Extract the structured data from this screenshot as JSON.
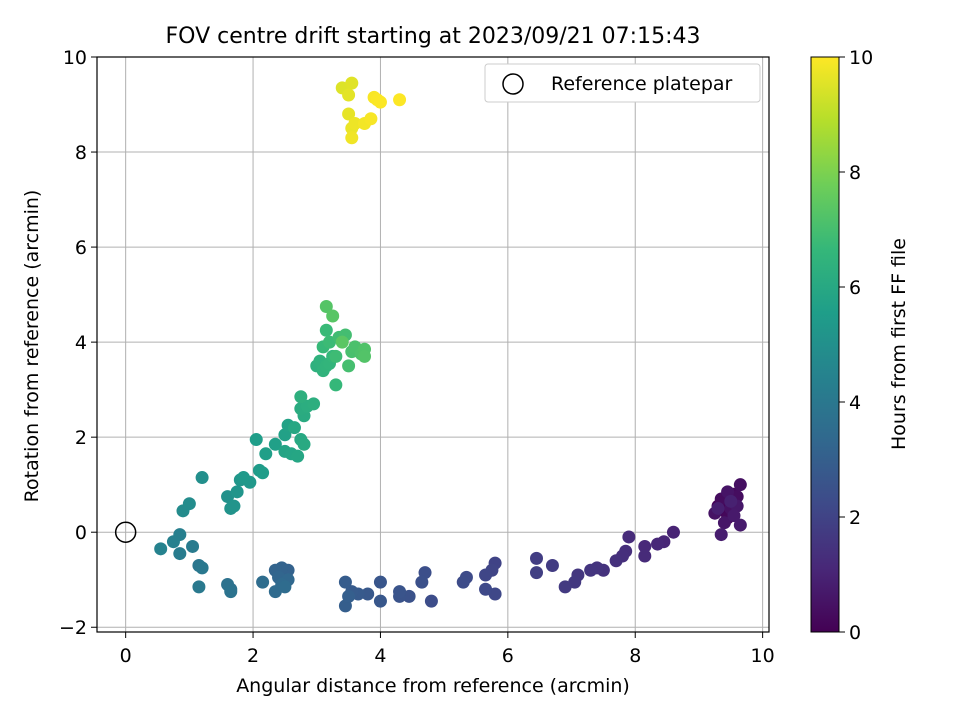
{
  "chart_data": {
    "type": "scatter",
    "title": "FOV centre drift starting at 2023/09/21 07:15:43",
    "xlabel": "Angular distance from reference (arcmin)",
    "ylabel": "Rotation from reference (arcmin)",
    "xlim": [
      -0.45,
      10.1
    ],
    "ylim": [
      -2.1,
      10.0
    ],
    "xticks": [
      "0",
      "2",
      "4",
      "6",
      "8",
      "10"
    ],
    "yticks": [
      "−2",
      "0",
      "2",
      "4",
      "6",
      "8",
      "10"
    ],
    "grid": true,
    "legend": {
      "placement": "top-right",
      "entries": [
        "Reference platepar"
      ]
    },
    "reference_point": {
      "x": 0,
      "y": 0
    },
    "colorbar": {
      "label": "Hours from first FF file",
      "range": [
        0,
        10
      ],
      "ticks": [
        "0",
        "2",
        "4",
        "6",
        "8",
        "10"
      ],
      "colormap": [
        "#440154",
        "#482878",
        "#3e4a89",
        "#31688e",
        "#26828e",
        "#1f9e89",
        "#35b779",
        "#6ece58",
        "#b5de2b",
        "#fde725"
      ]
    },
    "series": [
      {
        "columns": [
          "x",
          "y",
          "hours"
        ],
        "points": [
          [
            9.3,
            0.55,
            0.05
          ],
          [
            9.4,
            0.45,
            0.1
          ],
          [
            9.5,
            0.6,
            0.15
          ],
          [
            9.45,
            0.3,
            0.2
          ],
          [
            9.55,
            0.8,
            0.25
          ],
          [
            9.35,
            0.7,
            0.3
          ],
          [
            9.6,
            0.75,
            0.35
          ],
          [
            9.65,
            1.0,
            0.4
          ],
          [
            9.5,
            0.5,
            0.45
          ],
          [
            9.25,
            0.4,
            0.5
          ],
          [
            9.45,
            0.85,
            0.55
          ],
          [
            9.4,
            0.2,
            0.6
          ],
          [
            9.6,
            0.55,
            0.65
          ],
          [
            9.55,
            0.35,
            0.7
          ],
          [
            9.65,
            0.15,
            0.75
          ],
          [
            9.35,
            -0.05,
            0.8
          ],
          [
            9.3,
            0.5,
            0.85
          ],
          [
            9.5,
            0.65,
            0.9
          ],
          [
            8.6,
            0.0,
            1.0
          ],
          [
            8.45,
            -0.2,
            1.05
          ],
          [
            8.35,
            -0.25,
            1.1
          ],
          [
            8.15,
            -0.3,
            1.15
          ],
          [
            8.15,
            -0.5,
            1.2
          ],
          [
            7.9,
            -0.1,
            1.25
          ],
          [
            7.85,
            -0.4,
            1.3
          ],
          [
            7.8,
            -0.5,
            1.35
          ],
          [
            7.7,
            -0.6,
            1.4
          ],
          [
            7.5,
            -0.8,
            1.45
          ],
          [
            7.4,
            -0.75,
            1.5
          ],
          [
            7.3,
            -0.8,
            1.55
          ],
          [
            7.1,
            -0.9,
            1.6
          ],
          [
            7.05,
            -1.05,
            1.65
          ],
          [
            6.9,
            -1.15,
            1.7
          ],
          [
            6.7,
            -0.7,
            1.75
          ],
          [
            6.45,
            -0.55,
            1.8
          ],
          [
            6.45,
            -0.85,
            1.85
          ],
          [
            5.8,
            -0.65,
            2.0
          ],
          [
            5.75,
            -0.8,
            2.05
          ],
          [
            5.65,
            -0.9,
            2.1
          ],
          [
            5.8,
            -1.3,
            2.15
          ],
          [
            5.65,
            -1.2,
            2.2
          ],
          [
            5.35,
            -0.95,
            2.25
          ],
          [
            5.3,
            -1.05,
            2.3
          ],
          [
            4.8,
            -1.45,
            2.35
          ],
          [
            4.7,
            -0.85,
            2.4
          ],
          [
            4.65,
            -1.05,
            2.45
          ],
          [
            4.45,
            -1.35,
            2.5
          ],
          [
            4.3,
            -1.35,
            2.55
          ],
          [
            4.3,
            -1.25,
            2.6
          ],
          [
            4.0,
            -1.05,
            2.65
          ],
          [
            4.0,
            -1.45,
            2.7
          ],
          [
            3.8,
            -1.3,
            2.75
          ],
          [
            3.65,
            -1.3,
            2.8
          ],
          [
            3.55,
            -1.25,
            2.85
          ],
          [
            3.45,
            -1.05,
            2.9
          ],
          [
            3.45,
            -1.55,
            2.95
          ],
          [
            3.5,
            -1.35,
            3.0
          ],
          [
            2.55,
            -0.8,
            3.1
          ],
          [
            2.45,
            -0.75,
            3.15
          ],
          [
            2.35,
            -0.8,
            3.2
          ],
          [
            2.4,
            -0.95,
            3.25
          ],
          [
            2.5,
            -1.05,
            3.3
          ],
          [
            2.55,
            -1.0,
            3.35
          ],
          [
            2.45,
            -1.1,
            3.4
          ],
          [
            2.35,
            -1.25,
            3.45
          ],
          [
            2.5,
            -1.15,
            3.5
          ],
          [
            2.15,
            -1.05,
            3.55
          ],
          [
            1.65,
            -1.2,
            3.7
          ],
          [
            1.6,
            -1.1,
            3.75
          ],
          [
            1.65,
            -1.25,
            3.8
          ],
          [
            1.15,
            -0.7,
            3.95
          ],
          [
            1.2,
            -0.75,
            4.0
          ],
          [
            1.15,
            -1.15,
            4.05
          ],
          [
            1.05,
            -0.3,
            4.15
          ],
          [
            0.85,
            -0.45,
            4.2
          ],
          [
            0.85,
            -0.05,
            4.3
          ],
          [
            0.75,
            -0.2,
            4.35
          ],
          [
            0.55,
            -0.35,
            4.45
          ],
          [
            0.9,
            0.45,
            4.8
          ],
          [
            1.0,
            0.6,
            4.85
          ],
          [
            1.2,
            1.15,
            4.95
          ],
          [
            1.6,
            0.75,
            5.05
          ],
          [
            1.65,
            0.5,
            5.1
          ],
          [
            1.7,
            0.55,
            5.15
          ],
          [
            1.75,
            0.85,
            5.2
          ],
          [
            1.8,
            1.1,
            5.25
          ],
          [
            1.95,
            1.05,
            5.3
          ],
          [
            1.85,
            1.15,
            5.35
          ],
          [
            2.1,
            1.3,
            5.45
          ],
          [
            2.15,
            1.25,
            5.5
          ],
          [
            2.05,
            1.95,
            5.55
          ],
          [
            2.2,
            1.65,
            5.6
          ],
          [
            2.35,
            1.85,
            5.65
          ],
          [
            2.5,
            2.05,
            5.7
          ],
          [
            2.55,
            2.25,
            5.75
          ],
          [
            2.5,
            1.7,
            5.8
          ],
          [
            2.6,
            1.65,
            5.85
          ],
          [
            2.7,
            1.6,
            5.9
          ],
          [
            2.65,
            2.2,
            5.95
          ],
          [
            2.75,
            1.95,
            6.0
          ],
          [
            2.8,
            1.85,
            6.05
          ],
          [
            2.8,
            2.45,
            6.1
          ],
          [
            2.75,
            2.6,
            6.15
          ],
          [
            2.85,
            2.65,
            6.2
          ],
          [
            2.95,
            2.7,
            6.25
          ],
          [
            2.75,
            2.85,
            6.3
          ],
          [
            3.0,
            3.5,
            6.35
          ],
          [
            3.05,
            3.6,
            6.4
          ],
          [
            3.1,
            3.4,
            6.45
          ],
          [
            3.15,
            3.5,
            6.5
          ],
          [
            3.2,
            3.55,
            6.55
          ],
          [
            3.25,
            3.7,
            6.6
          ],
          [
            3.3,
            3.1,
            6.65
          ],
          [
            3.1,
            3.9,
            6.7
          ],
          [
            3.15,
            4.25,
            6.75
          ],
          [
            3.2,
            4.0,
            6.8
          ],
          [
            3.3,
            3.7,
            6.85
          ],
          [
            3.35,
            4.1,
            6.9
          ],
          [
            3.45,
            4.15,
            6.95
          ],
          [
            3.5,
            3.5,
            7.0
          ],
          [
            3.55,
            3.8,
            7.05
          ],
          [
            3.6,
            3.9,
            7.1
          ],
          [
            3.7,
            3.75,
            7.15
          ],
          [
            3.75,
            3.85,
            7.2
          ],
          [
            3.75,
            3.7,
            7.25
          ],
          [
            3.15,
            4.75,
            7.3
          ],
          [
            3.25,
            4.55,
            7.35
          ],
          [
            3.4,
            4.0,
            7.4
          ],
          [
            3.4,
            9.35,
            9.5
          ],
          [
            3.55,
            9.45,
            9.55
          ],
          [
            3.5,
            9.2,
            9.6
          ],
          [
            3.5,
            8.8,
            9.65
          ],
          [
            3.55,
            8.5,
            9.7
          ],
          [
            3.6,
            8.6,
            9.75
          ],
          [
            3.55,
            8.3,
            9.8
          ],
          [
            3.75,
            8.6,
            9.85
          ],
          [
            3.85,
            8.7,
            9.9
          ],
          [
            3.9,
            9.15,
            9.93
          ],
          [
            3.95,
            9.1,
            9.95
          ],
          [
            4.0,
            9.05,
            9.97
          ],
          [
            4.3,
            9.1,
            9.99
          ]
        ]
      }
    ]
  }
}
